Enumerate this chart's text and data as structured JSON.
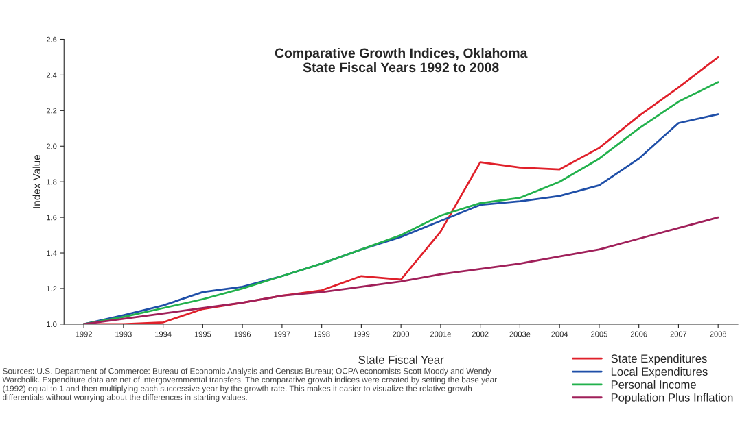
{
  "chart_data": {
    "type": "line",
    "title": "Comparative Growth Indices, Oklahoma\nState Fiscal Years 1992 to 2008",
    "xlabel": "State Fiscal Year",
    "ylabel": "Index Value",
    "categories": [
      "1992",
      "1993",
      "1994",
      "1995",
      "1996",
      "1997",
      "1998",
      "1999",
      "2000",
      "2001e",
      "2002",
      "2003e",
      "2004",
      "2005",
      "2006",
      "2007",
      "2008"
    ],
    "series": [
      {
        "name": "State Expenditures",
        "color": "#e0202a",
        "values": [
          1.0,
          1.0,
          1.01,
          1.085,
          1.12,
          1.16,
          1.19,
          1.27,
          1.25,
          1.52,
          1.91,
          1.88,
          1.87,
          1.99,
          2.17,
          2.33,
          2.5
        ]
      },
      {
        "name": "Local Expenditures",
        "color": "#1f4fa8",
        "values": [
          1.0,
          1.05,
          1.105,
          1.18,
          1.21,
          1.27,
          1.34,
          1.42,
          1.49,
          1.58,
          1.67,
          1.69,
          1.72,
          1.78,
          1.93,
          2.13,
          2.18
        ]
      },
      {
        "name": "Personal Income",
        "color": "#22b14c",
        "values": [
          1.0,
          1.04,
          1.09,
          1.14,
          1.2,
          1.27,
          1.34,
          1.42,
          1.5,
          1.61,
          1.68,
          1.71,
          1.8,
          1.93,
          2.1,
          2.25,
          2.36
        ]
      },
      {
        "name": "Population Plus Inflation",
        "color": "#a0205a",
        "values": [
          1.0,
          1.03,
          1.06,
          1.09,
          1.12,
          1.16,
          1.18,
          1.21,
          1.24,
          1.28,
          1.31,
          1.34,
          1.38,
          1.42,
          1.48,
          1.54,
          1.6
        ]
      }
    ],
    "ylim": [
      1.0,
      2.6
    ],
    "yticks": [
      {
        "value": 1.0,
        "label": "1.0"
      },
      {
        "value": 1.2,
        "label": "1.2"
      },
      {
        "value": 1.4,
        "label": "1.4"
      },
      {
        "value": 1.6,
        "label": "1.6"
      },
      {
        "value": 1.8,
        "label": "1.8"
      },
      {
        "value": 2.0,
        "label": "2.0"
      },
      {
        "value": 2.2,
        "label": "2.2"
      },
      {
        "value": 2.4,
        "label": "2.4"
      },
      {
        "value": 2.6,
        "label": "2.6"
      }
    ],
    "grid": false,
    "legend": "bottom right",
    "marker": "none",
    "line_style": "solid",
    "annotations": [
      "Sources: U.S. Department of Commerce: Bureau of Economic Analysis and Census Bureau; OCPA economists Scott Moody and Wendy Warcholik. Expenditure data are net of intergovernmental transfers. The comparative growth indices were created by setting the base year (1992) equal to 1 and then multiplying each successive year by the growth rate. This makes it easier to visualize the relative growth differentials without worrying about the differences in starting values."
    ]
  }
}
